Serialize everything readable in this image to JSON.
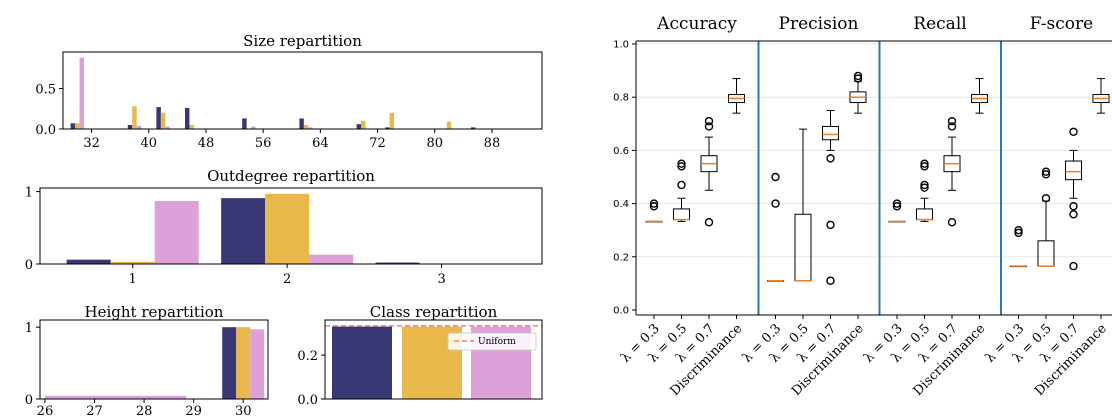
{
  "colors": {
    "navy": "#383773",
    "gold": "#e8b84a",
    "pink": "#dda0d9",
    "median": "#f08020",
    "sep": "#2a7ab0",
    "uniform": "#f08080"
  },
  "chart_data": [
    {
      "type": "bar",
      "id": "size",
      "title": "Size repartition",
      "categories": [
        "32",
        "40",
        "48",
        "56",
        "64",
        "72",
        "80",
        "88"
      ],
      "x": [
        30,
        32,
        34,
        36,
        38,
        40,
        42,
        44,
        46,
        48,
        50,
        52,
        54,
        56,
        58,
        60,
        62,
        64,
        66,
        68,
        70,
        72,
        74,
        76,
        78,
        80,
        82,
        84,
        86,
        88,
        90
      ],
      "xticks": [
        32,
        40,
        48,
        56,
        64,
        72,
        80,
        88
      ],
      "series": [
        {
          "color": "navy",
          "values": [
            0.07,
            0,
            0,
            0,
            0.05,
            0,
            0.27,
            0,
            0.26,
            0,
            0,
            0,
            0.13,
            0,
            0,
            0,
            0.13,
            0,
            0,
            0,
            0.06,
            0,
            0.02,
            0,
            0,
            0,
            0,
            0,
            0.02,
            0,
            0
          ]
        },
        {
          "color": "gold",
          "values": [
            0.07,
            0,
            0,
            0,
            0.28,
            0,
            0.2,
            0,
            0.05,
            0,
            0,
            0,
            0,
            0,
            0,
            0,
            0.05,
            0,
            0,
            0,
            0.1,
            0,
            0.2,
            0,
            0,
            0,
            0.09,
            0,
            0,
            0,
            0
          ]
        },
        {
          "color": "pink",
          "values": [
            0.88,
            0,
            0,
            0,
            0.04,
            0,
            0.03,
            0,
            0,
            0,
            0,
            0,
            0.03,
            0,
            0,
            0,
            0.02,
            0,
            0,
            0,
            0,
            0,
            0,
            0,
            0,
            0,
            0,
            0,
            0,
            0,
            0
          ]
        }
      ],
      "yticks": [
        "0.0",
        "0.5"
      ],
      "ylim": [
        0,
        0.95
      ]
    },
    {
      "type": "bar",
      "id": "outdeg",
      "title": "Outdegree repartition",
      "categories": [
        "1",
        "2",
        "3"
      ],
      "series": [
        {
          "color": "navy",
          "values": [
            0.06,
            0.91,
            0.02
          ]
        },
        {
          "color": "gold",
          "values": [
            0.03,
            0.97,
            0.0
          ]
        },
        {
          "color": "pink",
          "values": [
            0.87,
            0.13,
            0.0
          ]
        }
      ],
      "yticks": [
        "0",
        "1"
      ],
      "ylim": [
        0,
        1.05
      ]
    },
    {
      "type": "bar",
      "id": "height",
      "title": "Height repartition",
      "categories": [
        "26",
        "27",
        "28",
        "29",
        "30"
      ],
      "pink_line": {
        "from": 26,
        "to": 28,
        "value": 0.03
      },
      "series": [
        {
          "color": "navy",
          "values": [
            0,
            0,
            0,
            0,
            1.0
          ]
        },
        {
          "color": "gold",
          "values": [
            0,
            0,
            0,
            0,
            1.0
          ]
        },
        {
          "color": "pink",
          "values": [
            0,
            0,
            0,
            0,
            0.97
          ]
        }
      ],
      "yticks": [
        "0",
        "1"
      ],
      "ylim": [
        0,
        1.1
      ]
    },
    {
      "type": "bar",
      "id": "class",
      "title": "Class repartition",
      "series": [
        {
          "color": "navy",
          "values": [
            0.33
          ]
        },
        {
          "color": "gold",
          "values": [
            0.33
          ]
        },
        {
          "color": "pink",
          "values": [
            0.33
          ]
        }
      ],
      "uniform": 0.333,
      "legend": "Uniform",
      "legend_position": "top-right",
      "yticks": [
        "0.0",
        "0.2"
      ],
      "ylim": [
        0,
        0.36
      ]
    },
    {
      "type": "box",
      "id": "metrics",
      "groups": [
        "Accuracy",
        "Precision",
        "Recall",
        "F-score"
      ],
      "categories": [
        "λ = 0.3",
        "λ = 0.5",
        "λ = 0.7",
        "Discriminance"
      ],
      "yticks": [
        "0.0",
        "0.2",
        "0.4",
        "0.6",
        "0.8",
        "1.0"
      ],
      "ylim": [
        0,
        1.0
      ],
      "boxes": [
        [
          {
            "q1": 0.333,
            "median": 0.333,
            "q3": 0.333,
            "wlo": 0.333,
            "whi": 0.333,
            "outliers": [
              0.4,
              0.39
            ]
          },
          {
            "q1": 0.34,
            "median": 0.34,
            "q3": 0.38,
            "wlo": 0.333,
            "whi": 0.42,
            "outliers": [
              0.47,
              0.54,
              0.55
            ]
          },
          {
            "q1": 0.52,
            "median": 0.55,
            "q3": 0.58,
            "wlo": 0.45,
            "whi": 0.65,
            "outliers": [
              0.33,
              0.69,
              0.71
            ]
          },
          {
            "q1": 0.78,
            "median": 0.795,
            "q3": 0.81,
            "wlo": 0.74,
            "whi": 0.87,
            "outliers": []
          }
        ],
        [
          {
            "q1": 0.11,
            "median": 0.11,
            "q3": 0.11,
            "wlo": 0.11,
            "whi": 0.11,
            "outliers": [
              0.4,
              0.5
            ]
          },
          {
            "q1": 0.11,
            "median": 0.11,
            "q3": 0.36,
            "wlo": 0.11,
            "whi": 0.68,
            "outliers": []
          },
          {
            "q1": 0.64,
            "median": 0.66,
            "q3": 0.69,
            "wlo": 0.6,
            "whi": 0.75,
            "outliers": [
              0.11,
              0.32,
              0.57
            ]
          },
          {
            "q1": 0.78,
            "median": 0.8,
            "q3": 0.82,
            "wlo": 0.74,
            "whi": 0.86,
            "outliers": [
              0.87,
              0.88
            ]
          }
        ],
        [
          {
            "q1": 0.333,
            "median": 0.333,
            "q3": 0.333,
            "wlo": 0.333,
            "whi": 0.333,
            "outliers": [
              0.4,
              0.39
            ]
          },
          {
            "q1": 0.34,
            "median": 0.34,
            "q3": 0.38,
            "wlo": 0.333,
            "whi": 0.42,
            "outliers": [
              0.46,
              0.47,
              0.54,
              0.55
            ]
          },
          {
            "q1": 0.52,
            "median": 0.55,
            "q3": 0.58,
            "wlo": 0.45,
            "whi": 0.65,
            "outliers": [
              0.33,
              0.69,
              0.71
            ]
          },
          {
            "q1": 0.78,
            "median": 0.795,
            "q3": 0.81,
            "wlo": 0.74,
            "whi": 0.87,
            "outliers": []
          }
        ],
        [
          {
            "q1": 0.165,
            "median": 0.165,
            "q3": 0.165,
            "wlo": 0.165,
            "whi": 0.165,
            "outliers": [
              0.3,
              0.29
            ]
          },
          {
            "q1": 0.165,
            "median": 0.165,
            "q3": 0.26,
            "wlo": 0.165,
            "whi": 0.41,
            "outliers": [
              0.42,
              0.51,
              0.52
            ]
          },
          {
            "q1": 0.49,
            "median": 0.52,
            "q3": 0.56,
            "wlo": 0.42,
            "whi": 0.6,
            "outliers": [
              0.165,
              0.36,
              0.39,
              0.67
            ]
          },
          {
            "q1": 0.78,
            "median": 0.795,
            "q3": 0.81,
            "wlo": 0.74,
            "whi": 0.87,
            "outliers": []
          }
        ]
      ]
    }
  ]
}
